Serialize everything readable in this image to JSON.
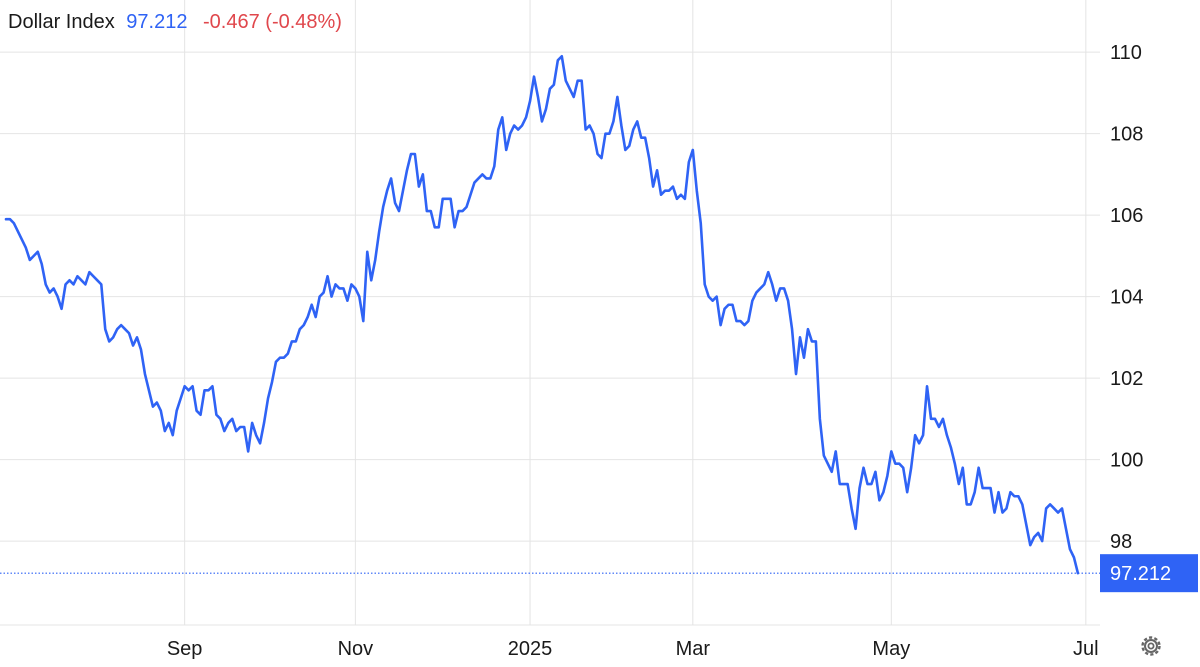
{
  "chart_data": {
    "type": "line",
    "title": "Dollar Index",
    "change": "-0.467 (-0.48%)",
    "color": "#2f63f5",
    "ylim": [
      95.94,
      111.28
    ],
    "yticks": [
      98,
      100,
      102,
      104,
      106,
      108,
      110
    ],
    "grid": true,
    "categories": [
      null,
      null,
      null,
      null,
      null,
      null,
      null,
      null,
      null,
      null,
      null,
      null,
      null,
      null,
      null,
      null,
      null,
      null,
      null,
      null,
      null,
      null,
      null,
      null,
      null,
      null,
      null,
      null,
      null,
      null,
      null,
      null,
      null,
      null,
      null,
      null,
      null,
      null,
      null,
      null,
      null,
      null,
      null,
      null,
      null,
      "Sep",
      null,
      null,
      null,
      null,
      null,
      null,
      null,
      null,
      null,
      null,
      null,
      null,
      null,
      null,
      null,
      null,
      null,
      null,
      null,
      null,
      null,
      null,
      null,
      null,
      null,
      null,
      null,
      null,
      null,
      null,
      null,
      null,
      null,
      null,
      null,
      null,
      null,
      null,
      null,
      null,
      null,
      null,
      "Nov",
      null,
      null,
      null,
      null,
      null,
      null,
      null,
      null,
      null,
      null,
      null,
      null,
      null,
      null,
      null,
      null,
      null,
      null,
      null,
      null,
      null,
      null,
      null,
      null,
      null,
      null,
      null,
      null,
      null,
      null,
      null,
      null,
      null,
      null,
      null,
      null,
      null,
      null,
      null,
      null,
      null,
      null,
      null,
      "2025",
      null,
      null,
      null,
      null,
      null,
      null,
      null,
      null,
      null,
      null,
      null,
      null,
      null,
      null,
      null,
      null,
      null,
      null,
      null,
      null,
      null,
      null,
      null,
      null,
      null,
      null,
      null,
      null,
      null,
      null,
      null,
      null,
      null,
      null,
      null,
      null,
      null,
      null,
      null,
      null,
      "Mar",
      null,
      null,
      null,
      null,
      null,
      null,
      null,
      null,
      null,
      null,
      null,
      null,
      null,
      null,
      null,
      null,
      null,
      null,
      null,
      null,
      null,
      null,
      null,
      null,
      null,
      null,
      null,
      null,
      null,
      null,
      null,
      null,
      null,
      null,
      null,
      null,
      null,
      null,
      null,
      null,
      null,
      null,
      null,
      null,
      null,
      null,
      null,
      null,
      null,
      "May",
      null,
      null,
      null,
      null,
      null,
      null,
      null,
      null,
      null,
      null,
      null,
      null,
      null,
      null,
      null,
      null,
      null,
      null,
      null,
      null,
      null,
      null,
      null,
      null,
      null,
      null,
      null,
      null,
      null,
      null,
      null,
      null,
      null,
      null,
      null,
      null,
      null,
      null,
      null,
      null,
      null,
      null,
      null,
      null,
      null,
      null,
      null,
      null,
      "Jul"
    ],
    "values": [
      105.9,
      105.9,
      105.8,
      105.6,
      105.4,
      105.2,
      104.9,
      105.0,
      105.1,
      104.8,
      104.3,
      104.1,
      104.2,
      104.0,
      103.7,
      104.3,
      104.4,
      104.3,
      104.5,
      104.4,
      104.3,
      104.6,
      104.5,
      104.4,
      104.3,
      103.2,
      102.9,
      103.0,
      103.2,
      103.3,
      103.2,
      103.1,
      102.8,
      103.0,
      102.7,
      102.1,
      101.7,
      101.3,
      101.4,
      101.2,
      100.7,
      100.9,
      100.6,
      101.2,
      101.5,
      101.8,
      101.7,
      101.8,
      101.2,
      101.1,
      101.7,
      101.7,
      101.8,
      101.1,
      101.0,
      100.7,
      100.9,
      101.0,
      100.7,
      100.8,
      100.8,
      100.2,
      100.9,
      100.6,
      100.4,
      100.9,
      101.5,
      101.9,
      102.4,
      102.5,
      102.5,
      102.6,
      102.9,
      102.9,
      103.2,
      103.3,
      103.5,
      103.8,
      103.5,
      104.0,
      104.1,
      104.5,
      104.0,
      104.3,
      104.2,
      104.2,
      103.9,
      104.3,
      104.2,
      104.0,
      103.4,
      105.1,
      104.4,
      104.9,
      105.6,
      106.2,
      106.6,
      106.9,
      106.3,
      106.1,
      106.6,
      107.1,
      107.5,
      107.5,
      106.7,
      107.0,
      106.1,
      106.1,
      105.7,
      105.7,
      106.4,
      106.4,
      106.4,
      105.7,
      106.1,
      106.1,
      106.2,
      106.5,
      106.8,
      106.9,
      107.0,
      106.9,
      106.9,
      107.2,
      108.1,
      108.4,
      107.6,
      108.0,
      108.2,
      108.1,
      108.2,
      108.4,
      108.8,
      109.4,
      108.9,
      108.3,
      108.6,
      109.1,
      109.2,
      109.8,
      109.9,
      109.3,
      109.1,
      108.9,
      109.3,
      109.3,
      108.1,
      108.2,
      108.0,
      107.5,
      107.4,
      108.0,
      108.0,
      108.3,
      108.9,
      108.2,
      107.6,
      107.7,
      108.1,
      108.3,
      107.9,
      107.9,
      107.4,
      106.7,
      107.1,
      106.5,
      106.6,
      106.6,
      106.7,
      106.4,
      106.5,
      106.4,
      107.3,
      107.6,
      106.6,
      105.8,
      104.3,
      104.0,
      103.9,
      104.0,
      103.3,
      103.7,
      103.8,
      103.8,
      103.4,
      103.4,
      103.3,
      103.4,
      103.9,
      104.1,
      104.2,
      104.3,
      104.6,
      104.3,
      103.9,
      104.2,
      104.2,
      103.9,
      103.2,
      102.1,
      103.0,
      102.5,
      103.2,
      102.9,
      102.9,
      101.0,
      100.1,
      99.9,
      99.7,
      100.2,
      99.4,
      99.4,
      99.4,
      98.8,
      98.3,
      99.3,
      99.8,
      99.4,
      99.4,
      99.7,
      99.0,
      99.2,
      99.6,
      100.2,
      99.9,
      99.9,
      99.8,
      99.2,
      99.8,
      100.6,
      100.4,
      100.6,
      101.8,
      101.0,
      101.0,
      100.8,
      101.0,
      100.6,
      100.3,
      99.9,
      99.4,
      99.8,
      98.9,
      98.9,
      99.2,
      99.8,
      99.3,
      99.3,
      99.3,
      98.7,
      99.2,
      98.7,
      98.8,
      99.2,
      99.1,
      99.1,
      98.9,
      98.4,
      97.9,
      98.1,
      98.2,
      98.0,
      98.8,
      98.9,
      98.8,
      98.7,
      98.8,
      98.3,
      97.8,
      97.6,
      97.212,
      null,
      null
    ]
  }
}
